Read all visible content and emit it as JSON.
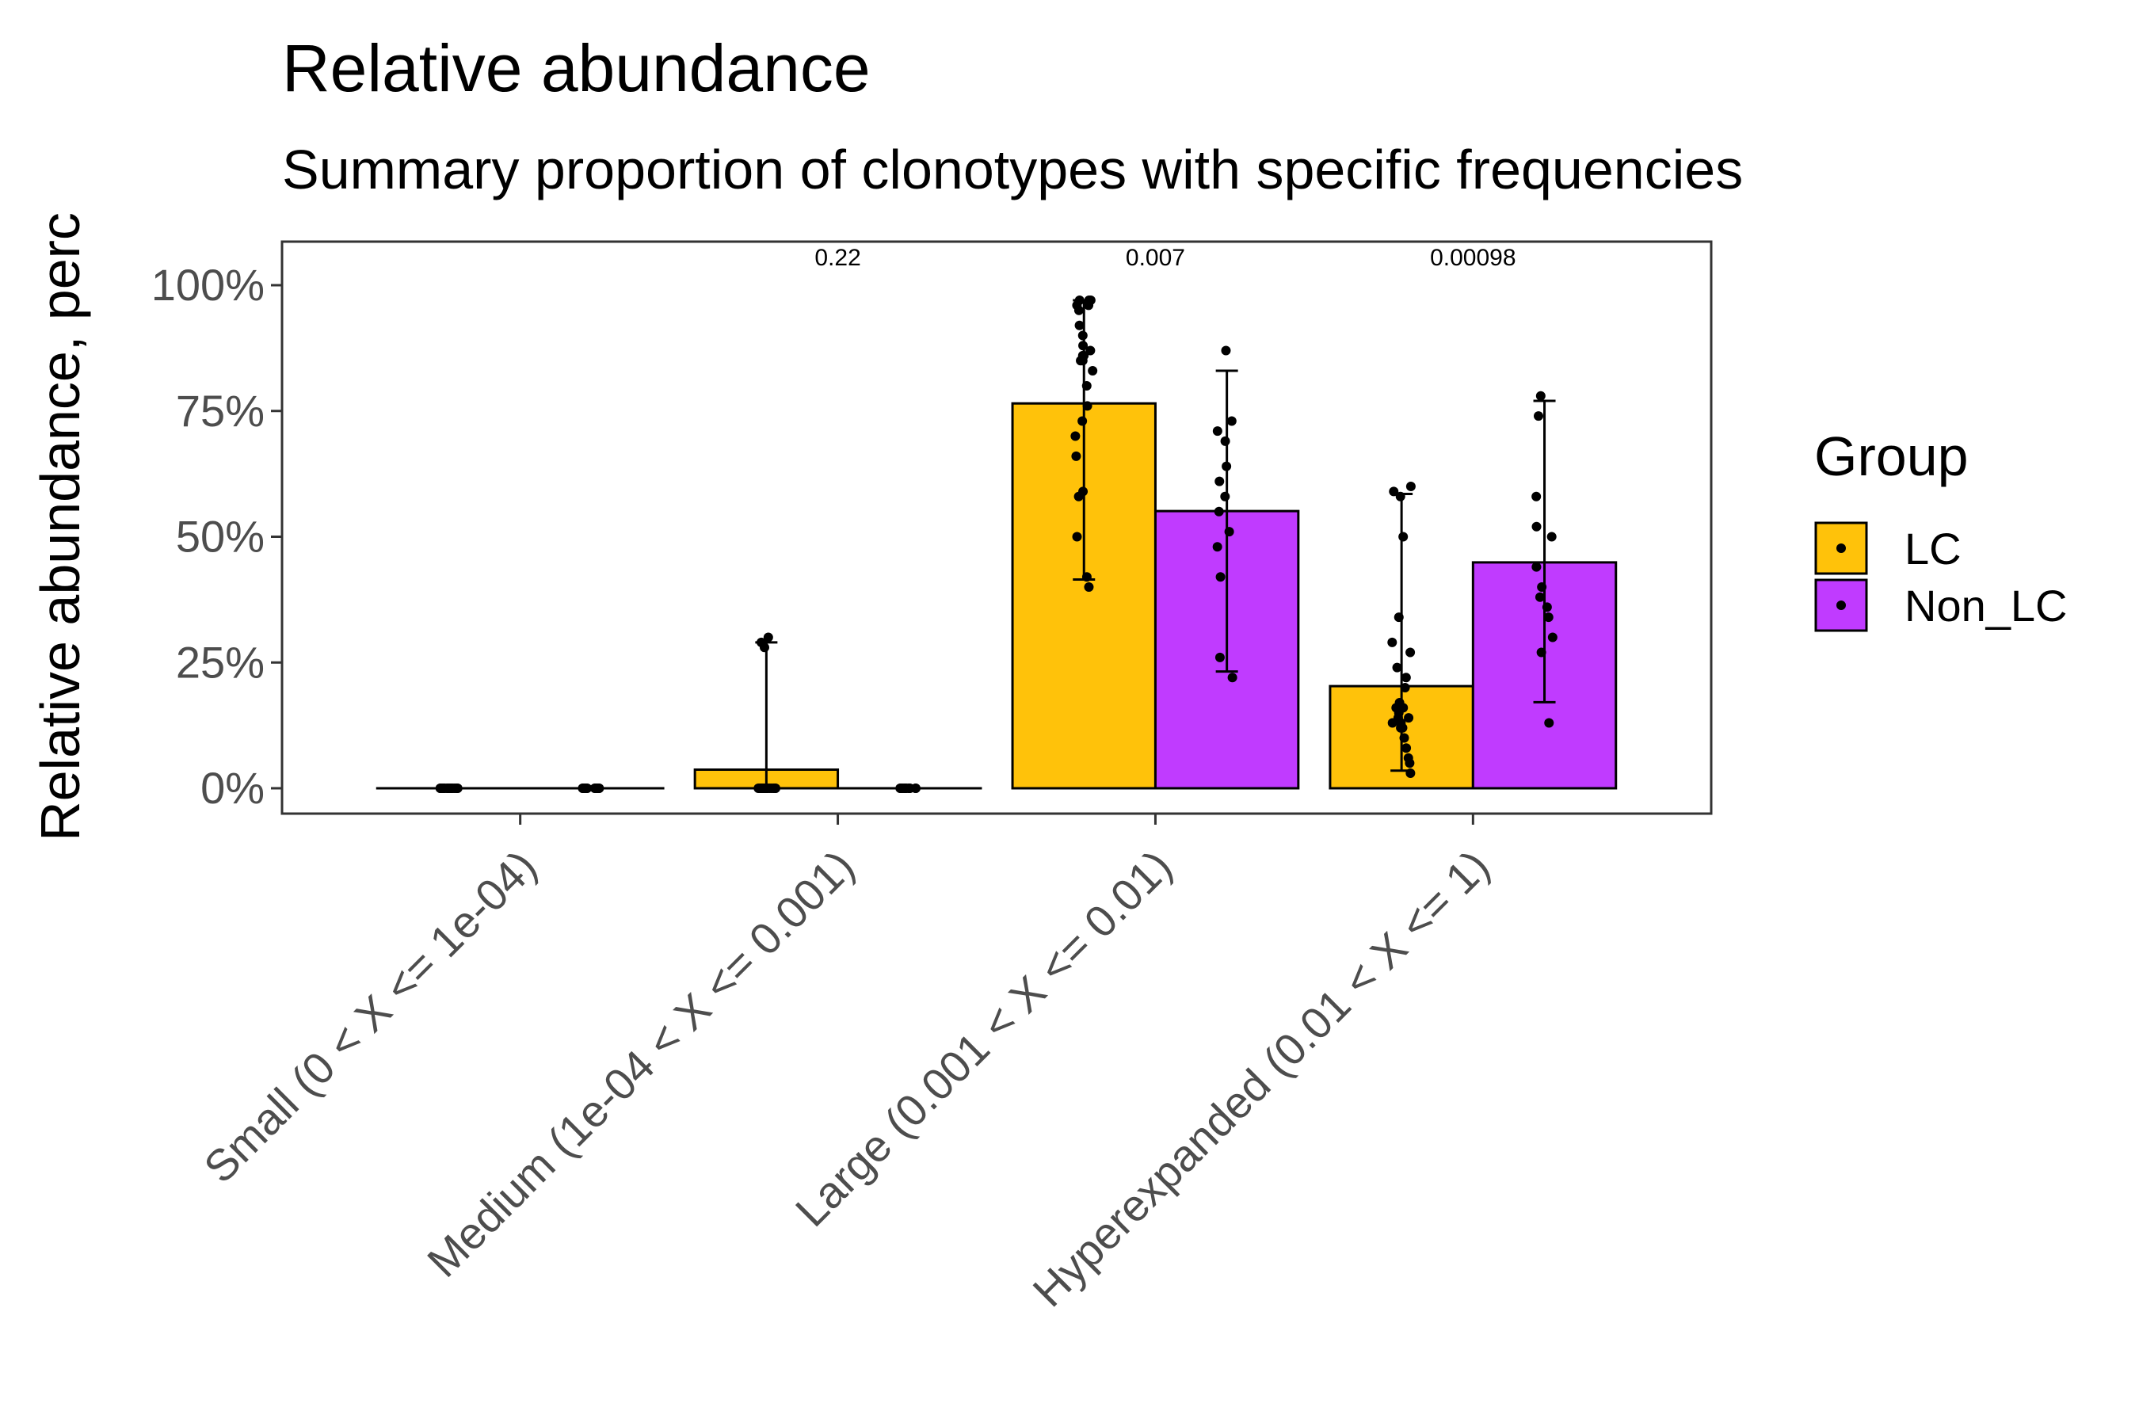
{
  "chart_data": {
    "type": "bar",
    "title": "Relative abundance",
    "subtitle": "Summary proportion of clonotypes with specific frequencies",
    "xlabel": "",
    "ylabel": "Relative abundance, perc",
    "ylim": [
      -0.05,
      1.08
    ],
    "yticks": [
      0,
      0.25,
      0.5,
      0.75,
      1.0
    ],
    "ytick_labels": [
      "0%",
      "25%",
      "50%",
      "75%",
      "100%"
    ],
    "categories": [
      "Small (0 < X <= 1e-04)",
      "Medium (1e-04 < X <= 0.001)",
      "Large (0.001 < X <= 0.01)",
      "Hyperexpanded (0.01 < X <= 1)"
    ],
    "series": [
      {
        "name": "LC",
        "color": "#FFC20A",
        "values": [
          0.0,
          0.037,
          0.765,
          0.203
        ],
        "error_low": [
          0.0,
          0.0,
          0.415,
          0.035
        ],
        "error_high": [
          0.0,
          0.29,
          0.97,
          0.585
        ],
        "points": [
          [
            0,
            0,
            0,
            0,
            0,
            0,
            0,
            0,
            0,
            0,
            0,
            0,
            0,
            0,
            0,
            0,
            0,
            0,
            0,
            0,
            0,
            0,
            0,
            0,
            0
          ],
          [
            0,
            0,
            0,
            0,
            0,
            0,
            0,
            0,
            0,
            0,
            0,
            0,
            0,
            0,
            0,
            0,
            0,
            0,
            0,
            0,
            0,
            0,
            0.29,
            0.3,
            0.28
          ],
          [
            0.4,
            0.42,
            0.5,
            0.58,
            0.59,
            0.66,
            0.7,
            0.73,
            0.76,
            0.8,
            0.83,
            0.85,
            0.85,
            0.86,
            0.86,
            0.87,
            0.88,
            0.9,
            0.92,
            0.95,
            0.96,
            0.96,
            0.97,
            0.97,
            0.97
          ],
          [
            0.03,
            0.05,
            0.06,
            0.08,
            0.1,
            0.12,
            0.13,
            0.14,
            0.15,
            0.16,
            0.17,
            0.2,
            0.22,
            0.24,
            0.27,
            0.29,
            0.34,
            0.5,
            0.58,
            0.59,
            0.6,
            0.12,
            0.14,
            0.16,
            0.13
          ]
        ]
      },
      {
        "name": "Non_LC",
        "color": "#C03BFF",
        "values": [
          0.0,
          0.0,
          0.551,
          0.449
        ],
        "error_low": [
          0.0,
          0.0,
          0.232,
          0.171
        ],
        "error_high": [
          0.0,
          0.0,
          0.83,
          0.77
        ],
        "points": [
          [
            0,
            0,
            0,
            0,
            0,
            0,
            0,
            0,
            0,
            0,
            0,
            0,
            0,
            0
          ],
          [
            0,
            0,
            0,
            0,
            0,
            0,
            0,
            0,
            0,
            0,
            0,
            0,
            0,
            0
          ],
          [
            0.22,
            0.26,
            0.42,
            0.48,
            0.51,
            0.55,
            0.58,
            0.61,
            0.64,
            0.69,
            0.71,
            0.73,
            0.87
          ],
          [
            0.13,
            0.27,
            0.3,
            0.34,
            0.36,
            0.38,
            0.4,
            0.44,
            0.5,
            0.52,
            0.58,
            0.74,
            0.78
          ]
        ]
      }
    ],
    "annotations": [
      "0.22",
      "0.007",
      "0.00098"
    ],
    "legend": {
      "title": "Group",
      "position": "right",
      "entries": [
        "LC",
        "Non_LC"
      ]
    },
    "grid": false
  }
}
